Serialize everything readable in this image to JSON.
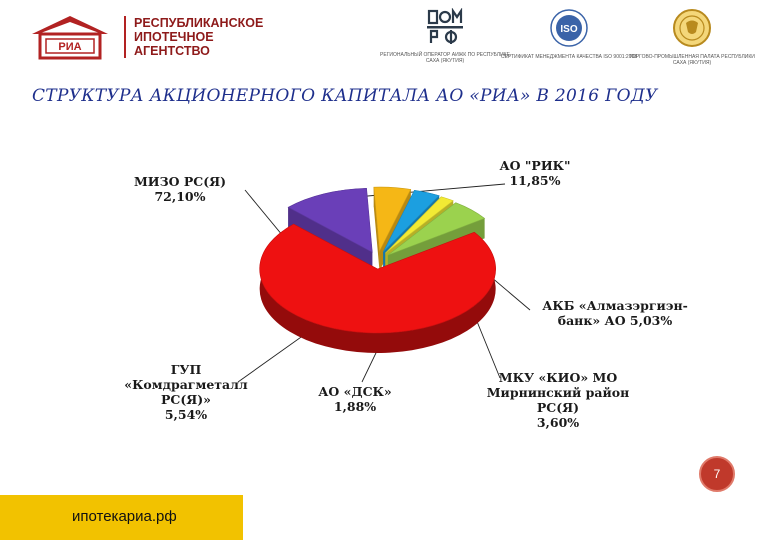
{
  "header": {
    "agency_lines": [
      "РЕСПУБЛИКАНСКОЕ",
      "ИПОТЕЧНОЕ",
      "АГЕНТСТВО"
    ],
    "logo_text": "РИА",
    "partners": [
      {
        "caption": "РЕГИОНАЛЬНЫЙ ОПЕРАТОР АИЖК ПО РЕСПУБЛИКЕ САХА (ЯКУТИЯ)",
        "mark": "ДОМ РФ",
        "icon": "dom-rf-logo"
      },
      {
        "caption": "СЕРТИФИКАТ МЕНЕДЖМЕНТА КАЧЕСТВА ISO 9001:2008",
        "mark": "ISO",
        "icon": "iso-seal"
      },
      {
        "caption": "ТОРГОВО-ПРОМЫШЛЕННАЯ ПАЛАТА РЕСПУБЛИКИ САХА (ЯКУТИЯ)",
        "mark": "",
        "icon": "chamber-of-commerce-emblem"
      }
    ]
  },
  "title": "СТРУКТУРА АКЦИОНЕРНОГО КАПИТАЛА АО «РИА» В 2016 ГОДУ",
  "chart_data": {
    "type": "pie",
    "title": "",
    "exploded": true,
    "style": "3d",
    "slices": [
      {
        "lines": [
          "МИЗО РС(Я)",
          "72,10%"
        ],
        "value": 72.1,
        "color": "#ee1111"
      },
      {
        "lines": [
          "АО \"РИК\"",
          "11,85%"
        ],
        "value": 11.85,
        "color": "#6a3fb8"
      },
      {
        "lines": [
          "АКБ «Алмазэргиэн-",
          "банк» АО 5,03%"
        ],
        "value": 5.03,
        "color": "#f5b716"
      },
      {
        "lines": [
          "МКУ «КИО» МО",
          "Мирнинский район",
          "РС(Я)",
          "3,60%"
        ],
        "value": 3.6,
        "color": "#1c9fe0"
      },
      {
        "lines": [
          "АО «ДСК»",
          "1,88%"
        ],
        "value": 1.88,
        "color": "#f2ea34"
      },
      {
        "lines": [
          "ГУП",
          "«Комдрагметалл",
          "РС(Я)»",
          "5,54%"
        ],
        "value": 5.54,
        "color": "#9bd24e"
      }
    ]
  },
  "footer": {
    "page_number": "7",
    "site": "ипотекариа.рф"
  }
}
